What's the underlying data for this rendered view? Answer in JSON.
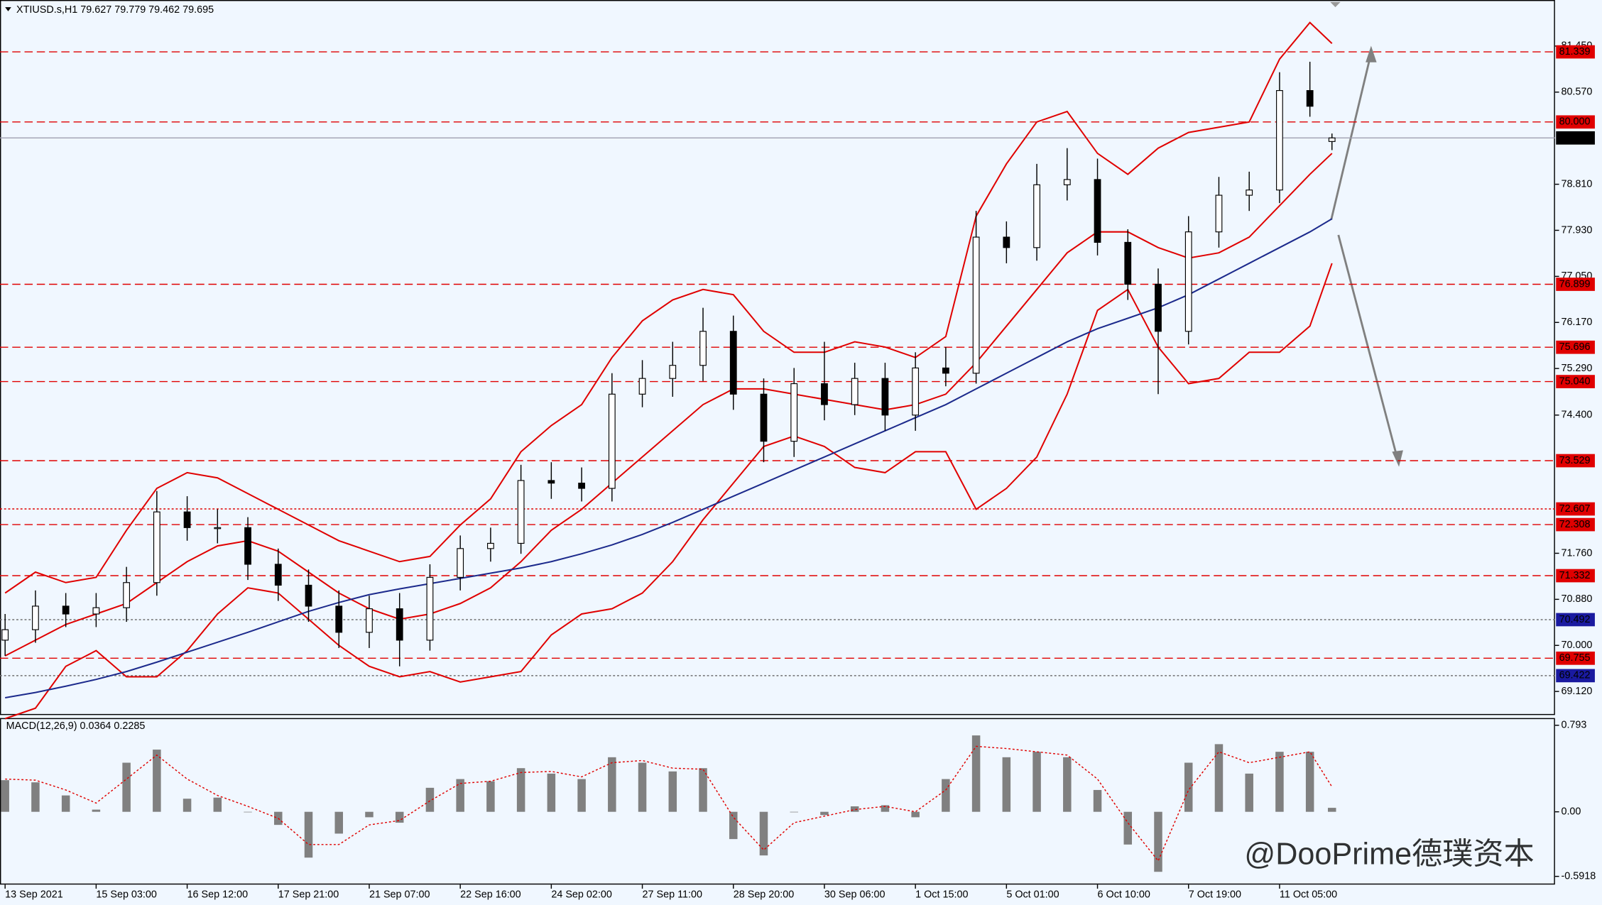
{
  "chart_data": [
    {
      "type": "candlestick",
      "title": "XTIUSD.s,H1 79.627 79.779 79.462 79.695",
      "x": [
        0,
        11,
        22,
        33,
        44,
        55,
        66,
        77,
        88,
        99,
        110,
        121,
        132,
        143,
        154,
        165,
        176,
        187,
        198,
        209,
        220,
        231,
        242,
        253,
        264,
        275,
        286,
        297,
        308,
        319,
        330,
        341,
        352,
        363,
        374,
        385,
        396,
        407,
        418,
        429,
        440,
        451,
        462,
        473,
        481
      ],
      "open": [
        70.1,
        70.3,
        70.75,
        70.6,
        70.72,
        71.2,
        72.55,
        72.25,
        72.25,
        71.55,
        71.15,
        70.75,
        70.25,
        70.7,
        70.1,
        71.3,
        71.85,
        71.95,
        73.15,
        73.1,
        73.0,
        74.8,
        75.1,
        75.35,
        76.0,
        74.8,
        73.9,
        75.0,
        74.6,
        75.1,
        74.4,
        75.3,
        75.2,
        77.8,
        77.6,
        78.8,
        78.9,
        77.7,
        76.9,
        76.0,
        77.9,
        78.6,
        78.7,
        80.6,
        79.627
      ],
      "high": [
        70.6,
        71.05,
        71.0,
        71.0,
        71.5,
        72.95,
        72.85,
        72.6,
        72.45,
        71.85,
        71.45,
        71.05,
        70.95,
        71.0,
        71.55,
        72.1,
        72.25,
        73.45,
        73.5,
        73.4,
        75.2,
        75.45,
        75.8,
        76.45,
        76.3,
        75.1,
        75.3,
        75.8,
        75.4,
        75.4,
        75.6,
        75.7,
        78.3,
        78.1,
        79.2,
        79.5,
        79.3,
        77.95,
        77.2,
        78.2,
        78.95,
        79.05,
        80.95,
        81.15,
        79.779
      ],
      "low": [
        69.8,
        70.05,
        70.35,
        70.35,
        70.45,
        70.95,
        72.0,
        71.95,
        71.25,
        70.85,
        70.45,
        69.95,
        69.95,
        69.6,
        69.9,
        71.05,
        71.6,
        71.75,
        72.8,
        72.75,
        72.75,
        74.55,
        74.75,
        75.05,
        74.5,
        73.5,
        73.6,
        74.3,
        74.4,
        74.1,
        74.1,
        74.95,
        75.0,
        77.3,
        77.35,
        78.5,
        77.45,
        76.6,
        74.8,
        75.75,
        77.6,
        78.3,
        78.45,
        80.1,
        79.462
      ],
      "close": [
        70.3,
        70.75,
        70.6,
        70.72,
        71.2,
        72.55,
        72.25,
        72.25,
        71.55,
        71.15,
        70.75,
        70.25,
        70.7,
        70.1,
        71.3,
        71.85,
        71.95,
        73.15,
        73.1,
        73.0,
        74.8,
        75.1,
        75.35,
        76.0,
        74.8,
        73.9,
        75.0,
        74.6,
        75.1,
        74.4,
        75.3,
        75.2,
        77.8,
        77.6,
        78.8,
        78.9,
        77.7,
        76.9,
        76.0,
        77.9,
        78.6,
        78.7,
        80.6,
        80.3,
        79.695
      ],
      "overlays": [
        {
          "color": "#e00000",
          "values": [
            71.0,
            71.4,
            71.2,
            71.3,
            72.2,
            73.0,
            73.3,
            73.2,
            72.9,
            72.6,
            72.3,
            72.0,
            71.8,
            71.6,
            71.7,
            72.3,
            72.8,
            73.7,
            74.2,
            74.6,
            75.5,
            76.2,
            76.6,
            76.8,
            76.7,
            76.0,
            75.6,
            75.6,
            75.8,
            75.7,
            75.5,
            75.9,
            78.2,
            79.2,
            80.0,
            80.2,
            79.4,
            79.0,
            79.5,
            79.8,
            79.9,
            80.0,
            81.2,
            81.9,
            81.5
          ]
        },
        {
          "color": "#e00000",
          "values": [
            69.8,
            70.1,
            70.4,
            70.6,
            70.8,
            71.2,
            71.6,
            71.9,
            72.0,
            71.8,
            71.4,
            71.0,
            70.7,
            70.5,
            70.6,
            70.8,
            71.1,
            71.6,
            72.2,
            72.6,
            73.1,
            73.6,
            74.1,
            74.6,
            74.9,
            74.9,
            74.8,
            74.7,
            74.6,
            74.5,
            74.6,
            74.8,
            75.4,
            76.1,
            76.8,
            77.5,
            77.9,
            77.9,
            77.6,
            77.4,
            77.5,
            77.8,
            78.4,
            79.0,
            79.4
          ]
        },
        {
          "color": "#e00000",
          "values": [
            68.6,
            68.8,
            69.6,
            69.9,
            69.4,
            69.4,
            69.9,
            70.6,
            71.1,
            71.0,
            70.5,
            70.0,
            69.6,
            69.4,
            69.5,
            69.3,
            69.4,
            69.5,
            70.2,
            70.6,
            70.7,
            71.0,
            71.6,
            72.4,
            73.1,
            73.8,
            74.0,
            73.8,
            73.4,
            73.3,
            73.7,
            73.7,
            72.6,
            73.0,
            73.6,
            74.8,
            76.4,
            76.8,
            75.7,
            75.0,
            75.1,
            75.6,
            75.6,
            76.1,
            77.3
          ]
        },
        {
          "color": "#1c2a8c",
          "values": [
            69.0,
            69.1,
            69.22,
            69.35,
            69.5,
            69.68,
            69.87,
            70.06,
            70.25,
            70.45,
            70.65,
            70.82,
            70.97,
            71.08,
            71.18,
            71.28,
            71.38,
            71.48,
            71.6,
            71.75,
            71.92,
            72.12,
            72.35,
            72.6,
            72.85,
            73.1,
            73.35,
            73.6,
            73.85,
            74.1,
            74.35,
            74.6,
            74.9,
            75.2,
            75.5,
            75.8,
            76.05,
            76.25,
            76.45,
            76.7,
            77.0,
            77.3,
            77.6,
            77.9,
            78.15
          ]
        }
      ],
      "levels": [
        {
          "value": 81.339,
          "color": "#e00000",
          "style": "dashed"
        },
        {
          "value": 80,
          "label": "80.000",
          "color": "#e00000",
          "style": "dashed"
        },
        {
          "value": 79.695,
          "color": "#000000",
          "style": "solid"
        },
        {
          "value": 76.899,
          "color": "#e00000",
          "style": "dashed"
        },
        {
          "value": 75.696,
          "color": "#e00000",
          "style": "dashed"
        },
        {
          "value": 75.04,
          "label": "75.040",
          "color": "#e00000",
          "style": "dashed"
        },
        {
          "value": 73.529,
          "color": "#e00000",
          "style": "dashed"
        },
        {
          "value": 72.607,
          "color": "#e00000",
          "style": "dotted"
        },
        {
          "value": 72.308,
          "color": "#e00000",
          "style": "dashed"
        },
        {
          "value": 71.332,
          "color": "#e00000",
          "style": "dashed"
        },
        {
          "value": 70.492,
          "color": "#1a1aa0",
          "style": "dotted"
        },
        {
          "value": 69.755,
          "color": "#e00000",
          "style": "dashed"
        },
        {
          "value": 69.422,
          "color": "#1a1aa0",
          "style": "dotted"
        }
      ],
      "xlim": [
        -1.85,
        561.85
      ],
      "xticks": [
        {
          "value": 0,
          "label": "13 Sep 2021"
        },
        {
          "value": 33,
          "label": "15 Sep 03:00"
        },
        {
          "value": 66,
          "label": "16 Sep 12:00"
        },
        {
          "value": 99,
          "label": "17 Sep 21:00"
        },
        {
          "value": 132,
          "label": "21 Sep 07:00"
        },
        {
          "value": 165,
          "label": "22 Sep 16:00"
        },
        {
          "value": 198,
          "label": "24 Sep 02:00"
        },
        {
          "value": 231,
          "label": "27 Sep 11:00"
        },
        {
          "value": 264,
          "label": "28 Sep 20:00"
        },
        {
          "value": 297,
          "label": "30 Sep 06:00"
        },
        {
          "value": 330,
          "label": "1 Oct 15:00"
        },
        {
          "value": 363,
          "label": "5 Oct 01:00"
        },
        {
          "value": 396,
          "label": "6 Oct 10:00"
        },
        {
          "value": 429,
          "label": "7 Oct 19:00"
        },
        {
          "value": 462,
          "label": "11 Oct 05:00"
        }
      ],
      "ylim": [
        68.67,
        82.33
      ],
      "yticks": [
        {
          "value": 81.45,
          "label": "81.450"
        },
        {
          "value": 80.57,
          "label": "80.570"
        },
        {
          "value": 78.81,
          "label": "78.810"
        },
        {
          "value": 77.93,
          "label": "77.930"
        },
        {
          "value": 77.05,
          "label": "77.050"
        },
        {
          "value": 76.17,
          "label": "76.170"
        },
        {
          "value": 75.29,
          "label": "75.290"
        },
        {
          "value": 74.4,
          "label": "74.400"
        },
        {
          "value": 71.76,
          "label": "71.760"
        },
        {
          "value": 70.88,
          "label": "70.880"
        },
        {
          "value": 70,
          "label": "70.000"
        },
        {
          "value": 69.12,
          "label": "69.120"
        }
      ]
    },
    {
      "type": "macd",
      "title": "MACD(12,26,9) 0.0364 0.2285",
      "x": [
        0,
        11,
        22,
        33,
        44,
        55,
        66,
        77,
        88,
        99,
        110,
        121,
        132,
        143,
        154,
        165,
        176,
        187,
        198,
        209,
        220,
        231,
        242,
        253,
        264,
        275,
        286,
        297,
        308,
        319,
        330,
        341,
        352,
        363,
        374,
        385,
        396,
        407,
        418,
        429,
        440,
        451,
        462,
        473,
        481
      ],
      "histogram": {
        "color": "#808080",
        "values": [
          0.29,
          0.27,
          0.15,
          0.02,
          0.45,
          0.57,
          0.12,
          0.13,
          0.0,
          -0.12,
          -0.42,
          -0.2,
          -0.05,
          -0.1,
          0.22,
          0.3,
          0.28,
          0.4,
          0.35,
          0.3,
          0.5,
          0.45,
          0.37,
          0.4,
          -0.25,
          -0.4,
          0.0,
          -0.03,
          0.05,
          0.06,
          -0.05,
          0.3,
          0.7,
          0.5,
          0.55,
          0.5,
          0.2,
          -0.3,
          -0.55,
          0.45,
          0.62,
          0.35,
          0.55,
          0.55,
          0.0364
        ]
      },
      "signal": {
        "color": "#e00000",
        "values": [
          0.3,
          0.29,
          0.2,
          0.08,
          0.3,
          0.52,
          0.3,
          0.15,
          0.05,
          -0.06,
          -0.3,
          -0.3,
          -0.12,
          -0.08,
          0.1,
          0.26,
          0.28,
          0.36,
          0.37,
          0.32,
          0.45,
          0.47,
          0.4,
          0.39,
          -0.05,
          -0.35,
          -0.1,
          -0.04,
          0.02,
          0.05,
          0.0,
          0.2,
          0.6,
          0.58,
          0.55,
          0.52,
          0.3,
          -0.1,
          -0.45,
          0.2,
          0.55,
          0.45,
          0.5,
          0.55,
          0.2285
        ]
      },
      "xlim": [
        -1.85,
        561.85
      ],
      "ylim": [
        -0.667,
        0.859
      ],
      "yticks": [
        0.793,
        {
          "value": 0,
          "label": "0.00"
        },
        -0.5918
      ]
    }
  ],
  "watermark": "@DooPrime德璞资本"
}
